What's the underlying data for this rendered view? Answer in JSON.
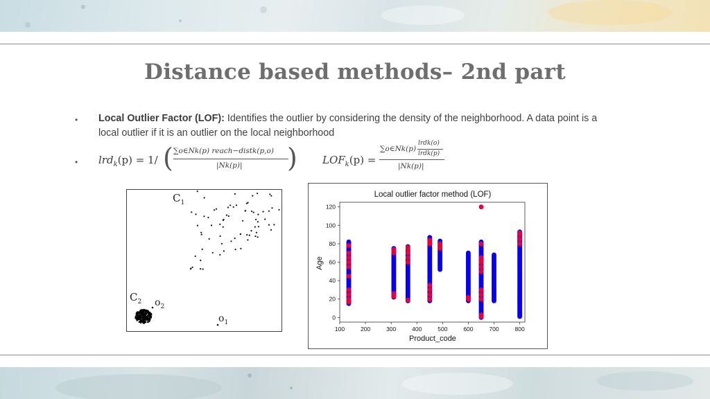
{
  "slide": {
    "title": "Distance based methods– 2nd part"
  },
  "bullets": [
    {
      "term": "Local Outlier Factor (LOF):",
      "text_line1": " Identifies the outlier by considering the density of the neighborhood. A data point is a",
      "text_line2": "local outlier if it is an outlier on the local neighborhood"
    }
  ],
  "formulas": {
    "lrd_lhs": "lrd",
    "lrd_sub": "k",
    "lrd_arg": "(p) = 1/",
    "lrd_numerator": "∑o∈Nk(p) reach−distk(p,o)",
    "lrd_denominator": "|Nk(p)|",
    "lof_lhs": "LOF",
    "lof_sub": "k",
    "lof_arg": "(p) =",
    "lof_numerator_sum": "∑o∈Nk(p)",
    "lof_inner_top": "lrdk(o)",
    "lof_inner_bottom": "lrdk(p)",
    "lof_denominator": "|Nk(p)|"
  },
  "left_figure": {
    "labels": {
      "c1": "C",
      "c1_sub": "1",
      "c2": "C",
      "c2_sub": "2",
      "o1": "o",
      "o1_sub": "1",
      "o2": "o",
      "o2_sub": "2"
    }
  },
  "chart_data": {
    "type": "scatter",
    "title": "Local outlier factor method (LOF)",
    "xlabel": "Product_code",
    "ylabel": "Age",
    "xlim": [
      100,
      820
    ],
    "ylim": [
      -5,
      125
    ],
    "xticks": [
      100,
      200,
      300,
      400,
      500,
      600,
      700,
      800
    ],
    "yticks": [
      0,
      20,
      40,
      60,
      80,
      100,
      120
    ],
    "colors": {
      "inlier": "#0a00f0",
      "outlier": "#e8003c"
    },
    "groups": [
      {
        "x": 135,
        "ymin": 15,
        "ymax": 82,
        "outliers": [
          17,
          20,
          25,
          30,
          45,
          55,
          60,
          65,
          70,
          78
        ]
      },
      {
        "x": 310,
        "ymin": 22,
        "ymax": 75,
        "outliers": [
          23,
          26,
          70,
          72,
          74
        ]
      },
      {
        "x": 365,
        "ymin": 18,
        "ymax": 77,
        "outliers": [
          19,
          60,
          65,
          70,
          74,
          76
        ]
      },
      {
        "x": 450,
        "ymin": 18,
        "ymax": 87,
        "outliers": [
          20,
          25,
          30,
          35,
          80,
          82,
          84
        ]
      },
      {
        "x": 490,
        "ymin": 52,
        "ymax": 83,
        "outliers": [
          75,
          78,
          80
        ]
      },
      {
        "x": 600,
        "ymin": 18,
        "ymax": 70,
        "outliers": [
          20,
          22
        ]
      },
      {
        "x": 650,
        "ymin": 0,
        "ymax": 82,
        "outliers": [
          1,
          3,
          20,
          25,
          30,
          50,
          55,
          60,
          62,
          65,
          80,
          120
        ]
      },
      {
        "x": 700,
        "ymin": 18,
        "ymax": 68,
        "outliers": []
      },
      {
        "x": 800,
        "ymin": 1,
        "ymax": 93,
        "outliers": [
          80,
          85,
          90,
          92
        ]
      }
    ]
  }
}
